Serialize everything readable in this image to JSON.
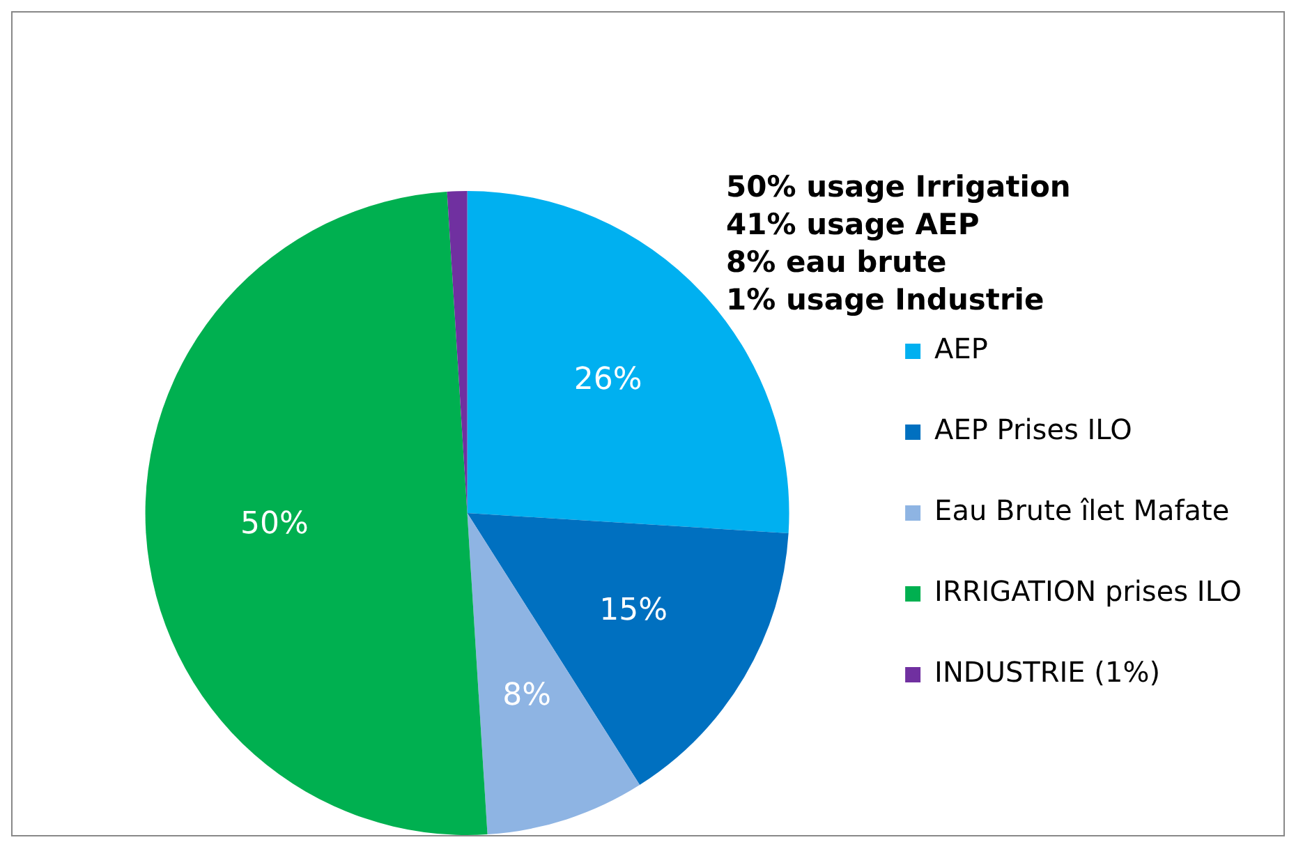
{
  "chart_data": {
    "type": "pie",
    "categories": [
      "AEP",
      "AEP Prises ILO",
      "Eau Brute îlet Mafate",
      "IRRIGATION prises ILO",
      "INDUSTRIE (1%)"
    ],
    "values": [
      26,
      15,
      8,
      50,
      1
    ],
    "colors": [
      "#00b0f0",
      "#0070c0",
      "#8eb4e3",
      "#00b050",
      "#7030a0"
    ],
    "value_labels": [
      "26%",
      "15%",
      "8%",
      "50%",
      null
    ],
    "annotations": [
      "50% usage Irrigation",
      "41% usage AEP",
      "8% eau brute",
      "1% usage Industrie"
    ],
    "legend": "right"
  }
}
